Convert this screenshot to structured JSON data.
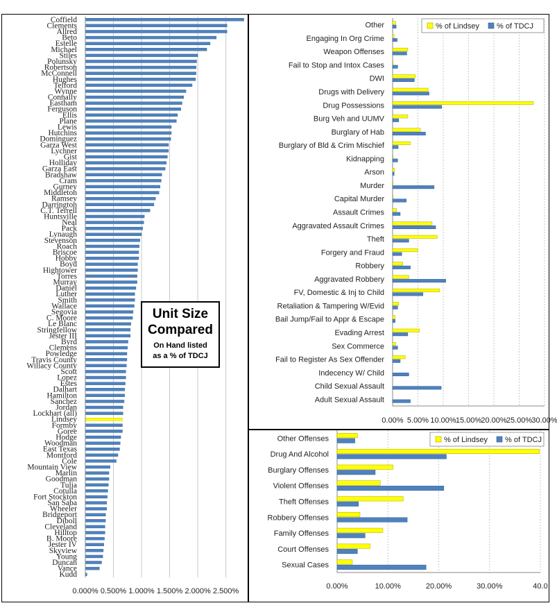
{
  "colors": {
    "tdcj": "#4f81bd",
    "lindsey": "#ffff00",
    "grid": "#c8c8c8"
  },
  "overlay": {
    "title": "Unit Size\nCompared",
    "subtitle": "On Hand listed\nas a % of TDCJ"
  },
  "chart_data": [
    {
      "id": "unit-size",
      "type": "bar",
      "orientation": "horizontal",
      "xlim": [
        0,
        2.85
      ],
      "x_ticks": [
        0,
        0.5,
        1.0,
        1.5,
        2.0,
        2.5
      ],
      "x_tick_labels": [
        "0.000%",
        "0.500%",
        "1.000%",
        "1.500%",
        "2.000%",
        "2.500%"
      ],
      "highlight": "Lindsey",
      "categories": [
        "Coffield",
        "Clements",
        "Allred",
        "Beto",
        "Estelle",
        "Michael",
        "Stiles",
        "Polunsky",
        "Robertson",
        "McConnell",
        "Hughes",
        "Telford",
        "Wynne",
        "Connally",
        "Eastham",
        "Ferguson",
        "Ellis",
        "Plane",
        "Lewis",
        "Hutchins",
        "Dominguez",
        "Garza West",
        "Lychner",
        "Gist",
        "Holliday",
        "Garza East",
        "Bradshaw",
        "Cram",
        "Gurney",
        "Middleton",
        "Ramsey",
        "Darrington",
        "C.T. Terrell",
        "Huntsville",
        "Neal",
        "Pack",
        "Lynaugh",
        "Stevenson",
        "Roach",
        "Briscoe",
        "Hobby",
        "Boyd",
        "Hightower",
        "Torres",
        "Murray",
        "Daniel",
        "Luther",
        "Smith",
        "Wallace",
        "Segovia",
        "C. Moore",
        "Le Blanc",
        "Stringfellow",
        "Jester III",
        "Byrd",
        "Clemens",
        "Powledge",
        "Travis County",
        "Willacy County",
        "Scott",
        "Lopez",
        "Estes",
        "Dalhart",
        "Hamilton",
        "Sanchez",
        "Jordan",
        "Lockhart (all)",
        "Lindsey",
        "Formby",
        "Goree",
        "Hodge",
        "Woodman",
        "East Texas",
        "Montford",
        "Cole",
        "Mountain View",
        "Marlin",
        "Goodman",
        "Tulia",
        "Cotulla",
        "Fort Stockton",
        "San Saba",
        "Wheeler",
        "Bridgeport",
        "Diboll",
        "Cleveland",
        "Hilltop",
        "B. Moore",
        "Jester IV",
        "Skyview",
        "Young",
        "Duncan",
        "Vance",
        "Kudd"
      ],
      "values": [
        2.82,
        2.52,
        2.52,
        2.33,
        2.22,
        2.16,
        2.0,
        1.98,
        1.97,
        1.97,
        1.96,
        1.9,
        1.79,
        1.75,
        1.72,
        1.7,
        1.64,
        1.62,
        1.53,
        1.53,
        1.52,
        1.48,
        1.48,
        1.46,
        1.44,
        1.42,
        1.36,
        1.35,
        1.33,
        1.31,
        1.25,
        1.22,
        1.15,
        1.05,
        1.04,
        1.02,
        1.0,
        0.97,
        0.96,
        0.95,
        0.95,
        0.93,
        0.93,
        0.92,
        0.92,
        0.9,
        0.88,
        0.88,
        0.87,
        0.85,
        0.84,
        0.81,
        0.8,
        0.8,
        0.76,
        0.75,
        0.74,
        0.74,
        0.73,
        0.72,
        0.72,
        0.71,
        0.7,
        0.7,
        0.69,
        0.67,
        0.67,
        0.66,
        0.66,
        0.66,
        0.63,
        0.62,
        0.61,
        0.58,
        0.55,
        0.44,
        0.42,
        0.42,
        0.41,
        0.4,
        0.39,
        0.38,
        0.38,
        0.36,
        0.36,
        0.35,
        0.35,
        0.34,
        0.33,
        0.32,
        0.31,
        0.29,
        0.25,
        0.03
      ]
    },
    {
      "id": "offense-detail",
      "type": "bar",
      "orientation": "horizontal",
      "xlim": [
        0,
        30
      ],
      "x_ticks": [
        0,
        5,
        10,
        15,
        20,
        25,
        30
      ],
      "x_tick_labels": [
        "0.00%",
        "5.00%",
        "10.00%",
        "15.00%",
        "20.00%",
        "25.00%",
        "30.00%"
      ],
      "legend": "top-right",
      "categories": [
        "Other",
        "Engaging In Org Crime",
        "Weapon Offenses",
        "Fail to Stop and Intox Cases",
        "DWI",
        "Drugs with Delivery",
        "Drug Possessions",
        "Burg Veh and UUMV",
        "Burglary of Hab",
        "Burglary of Bld & Crim Mischief",
        "Kidnapping",
        "Arson",
        "Murder",
        "Capital Murder",
        "Assault Crimes",
        "Aggravated Assault Crimes",
        "Theft",
        "Forgery and Fraud",
        "Robbery",
        "Aggravated Robbery",
        "FV, Domestic & Inj to Child",
        "Retaliation & Tampering  W/Evid",
        "Bail Jump/Fail to Appr & Escape",
        "Evading Arrest",
        "Sex Commerce",
        "Fail to Register As Sex Offender",
        "Indecency W/ Child",
        "Child Sexual Assault",
        "Adult Sexual Assault"
      ],
      "series": [
        {
          "name": "% of Lindsey",
          "color": "#ffff00",
          "values": [
            0.6,
            0.3,
            3.0,
            0.1,
            4.5,
            7.0,
            27.8,
            3.0,
            5.5,
            3.5,
            0.1,
            0.4,
            0.1,
            0.1,
            0.8,
            7.8,
            8.8,
            5.0,
            2.0,
            3.2,
            9.3,
            1.2,
            0.5,
            5.3,
            0.6,
            2.5,
            0.0,
            0.0,
            0.0
          ]
        },
        {
          "name": "% of TDCJ",
          "color": "#4f81bd",
          "values": [
            0.7,
            0.9,
            2.8,
            1.0,
            4.3,
            7.2,
            9.7,
            1.2,
            6.5,
            1.1,
            1.0,
            0.3,
            8.2,
            2.7,
            1.5,
            8.5,
            3.2,
            1.8,
            3.5,
            10.5,
            6.0,
            1.0,
            0.5,
            3.0,
            1.0,
            1.5,
            3.2,
            9.6,
            3.5
          ]
        }
      ]
    },
    {
      "id": "offense-group",
      "type": "bar",
      "orientation": "horizontal",
      "xlim": [
        0,
        40
      ],
      "x_ticks": [
        0,
        10,
        20,
        30,
        40
      ],
      "x_tick_labels": [
        "0.00%",
        "10.00%",
        "20.00%",
        "30.00%",
        "40.0"
      ],
      "legend": "top-right",
      "categories": [
        "Other Offenses",
        "Drug And Alcohol",
        "Burglary Offenses",
        "Violent Offenses",
        "Theft Offenses",
        "Robbery Offenses",
        "Family Offenses",
        "Court Offenses",
        "Sexual Cases"
      ],
      "series": [
        {
          "name": "% of Lindsey",
          "color": "#ffff00",
          "values": [
            4.0,
            39.8,
            11.0,
            8.5,
            13.0,
            4.5,
            9.0,
            6.5,
            3.0
          ]
        },
        {
          "name": "% of TDCJ",
          "color": "#4f81bd",
          "values": [
            3.5,
            21.5,
            7.5,
            21.0,
            4.2,
            13.8,
            5.5,
            4.0,
            17.5
          ]
        }
      ]
    }
  ]
}
